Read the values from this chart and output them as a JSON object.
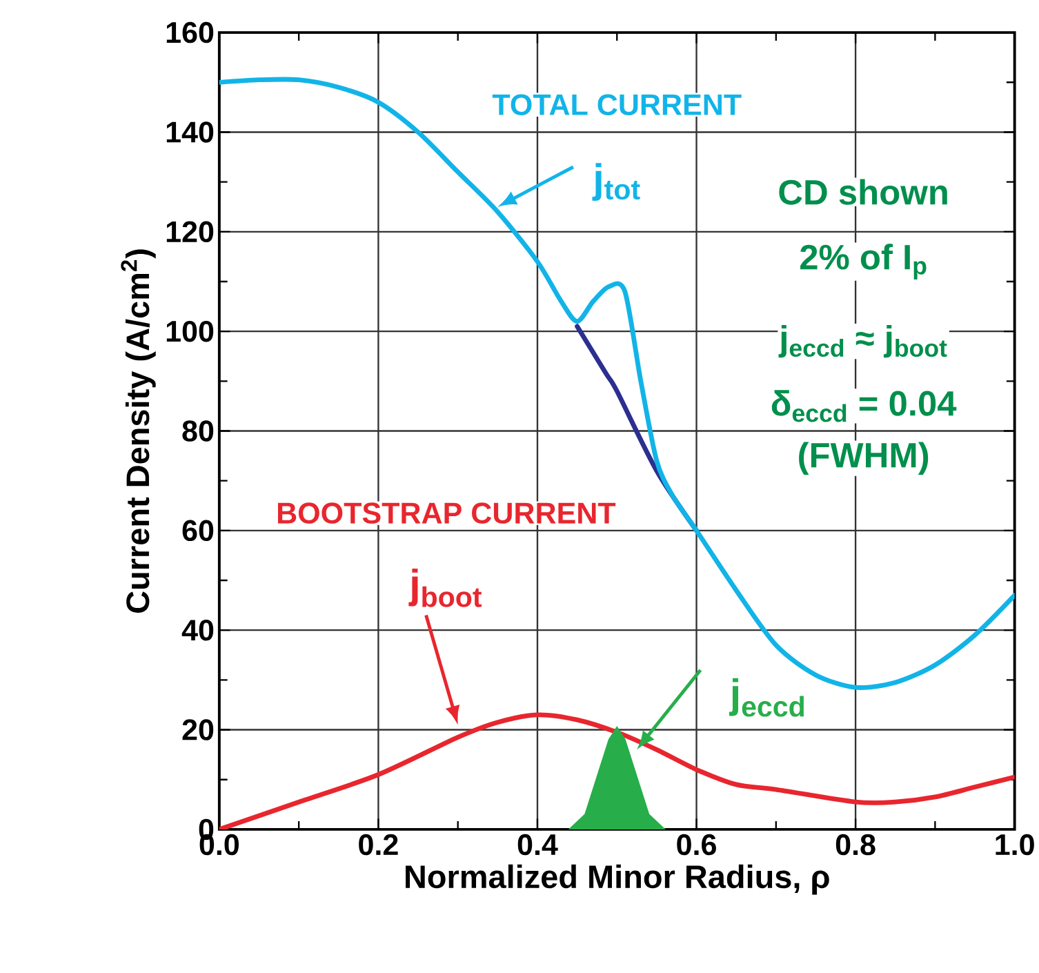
{
  "chart_data": {
    "type": "line",
    "xlabel": "Normalized Minor Radius, ρ",
    "ylabel": "Current Density (A/cm$^{2}$)",
    "xlim": [
      0,
      1
    ],
    "ylim": [
      0,
      160
    ],
    "xticks": [
      {
        "value": 0,
        "label": "0.0"
      },
      {
        "value": 0.1,
        "label": null
      },
      0.2,
      {
        "value": 0.3,
        "label": null
      },
      0.4,
      {
        "value": 0.5,
        "label": null
      },
      0.6,
      {
        "value": 0.7,
        "label": null
      },
      0.8,
      {
        "value": 0.9,
        "label": null
      },
      {
        "value": 1,
        "label": "1.0"
      }
    ],
    "yticks": [
      0,
      {
        "value": 10,
        "label": null
      },
      20,
      {
        "value": 30,
        "label": null
      },
      40,
      {
        "value": 50,
        "label": null
      },
      60,
      {
        "value": 70,
        "label": null
      },
      80,
      {
        "value": 90,
        "label": null
      },
      100,
      {
        "value": 110,
        "label": null
      },
      120,
      {
        "value": 130,
        "label": null
      },
      140,
      {
        "value": 150,
        "label": null
      },
      160
    ],
    "grid": true,
    "series": [
      {
        "color": "#2b2f8f",
        "x": [
          0.45,
          0.486,
          0.5,
          0.55,
          0.6
        ],
        "values": [
          101,
          91.6,
          88,
          72,
          60
        ]
      },
      {
        "color": "#12b4e8",
        "x": [
          0,
          0.05,
          0.1,
          0.15,
          0.2,
          0.25,
          0.3,
          0.35,
          0.4,
          0.43,
          0.45,
          0.47,
          0.49,
          0.51,
          0.53,
          0.55,
          0.57,
          0.6,
          0.65,
          0.7,
          0.75,
          0.8,
          0.85,
          0.9,
          0.95,
          1.0
        ],
        "values": [
          150,
          150.5,
          150.5,
          149,
          146,
          140,
          132,
          124,
          114,
          106,
          102,
          106,
          109,
          108,
          90,
          74,
          67,
          60,
          48,
          37,
          31,
          28.5,
          29.5,
          33,
          39,
          47
        ]
      },
      {
        "color": "#e8262e",
        "x": [
          0,
          0.1,
          0.2,
          0.3,
          0.35,
          0.4,
          0.45,
          0.5,
          0.55,
          0.6,
          0.65,
          0.7,
          0.8,
          0.85,
          0.9,
          0.95,
          1.0
        ],
        "values": [
          0,
          5.5,
          11,
          18.5,
          21.5,
          23,
          22,
          19.5,
          16,
          12,
          9,
          8,
          5.5,
          5.5,
          6.5,
          8.5,
          10.5
        ]
      },
      {
        "type": "area",
        "color": "#27ae4a",
        "x": [
          0.44,
          0.46,
          0.48,
          0.49,
          0.5,
          0.51,
          0.52,
          0.54,
          0.56
        ],
        "values": [
          0,
          3,
          13,
          18,
          20.5,
          18,
          13,
          3,
          0
        ]
      }
    ],
    "annotations": [
      "TOTAL CURRENT",
      {
        "text": "j$_{tot}$",
        "x": 0.35,
        "y": 125
      },
      "CD shown",
      "2% of I$_{p}$",
      "j$_{eccd}$ ≈ j$_{boot}$",
      "δ$_{eccd}$ = 0.04",
      "(FWHM)",
      "BOOTSTRAP CURRENT",
      "j$_{boot}$",
      {
        "text": "j$_{eccd}$",
        "x": 0.525,
        "y": 16
      }
    ]
  }
}
